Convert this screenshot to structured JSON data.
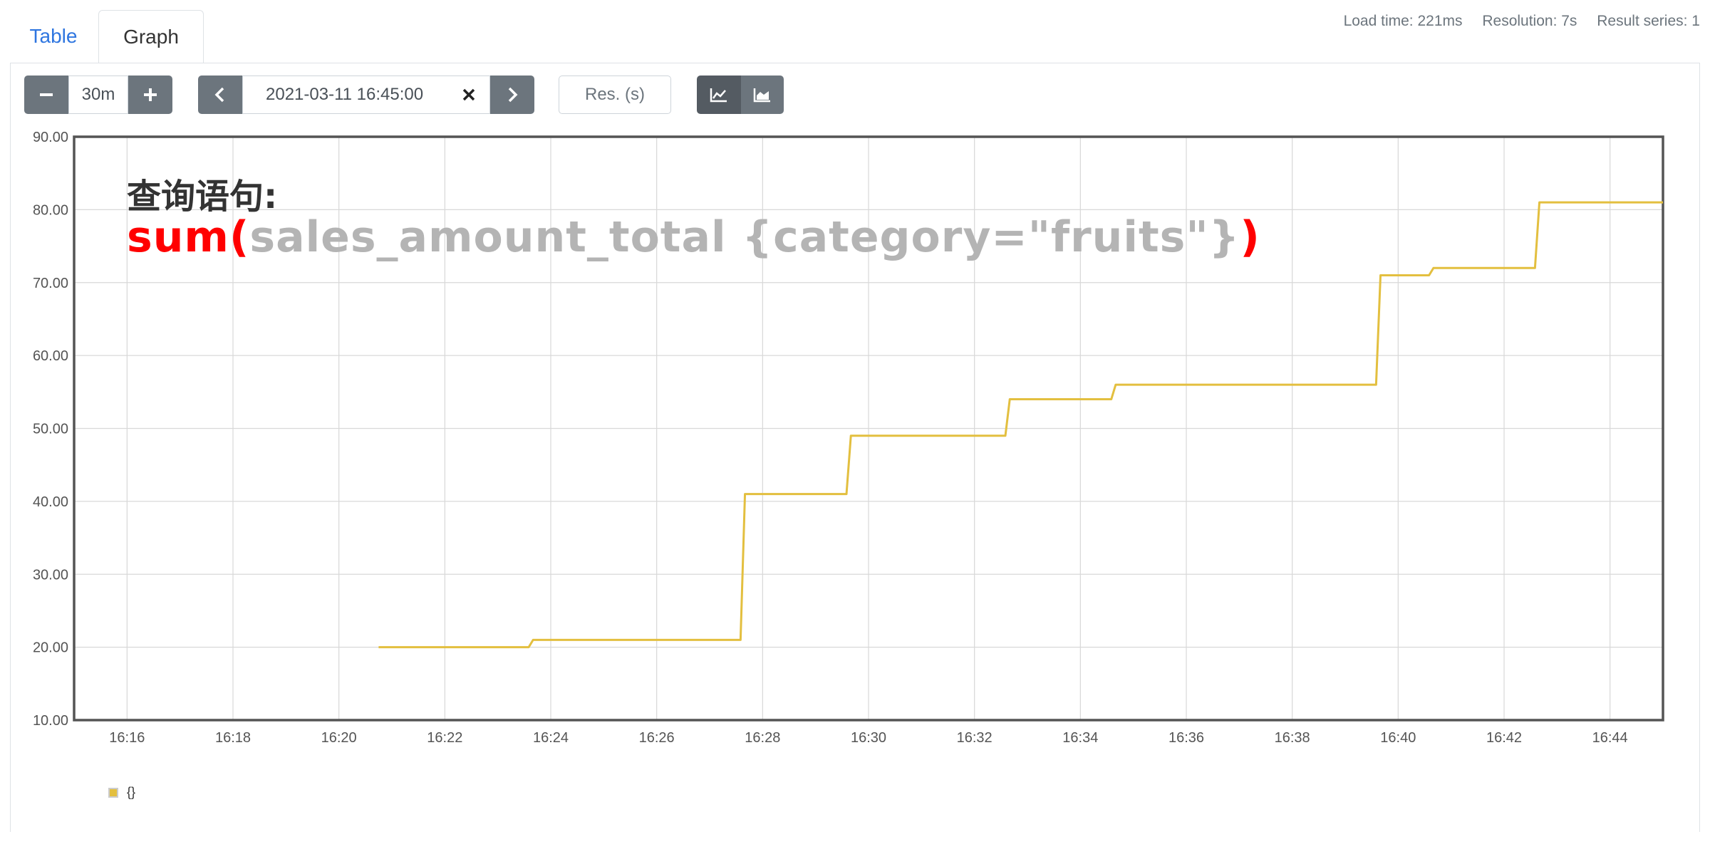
{
  "tabs": [
    {
      "label": "Table"
    },
    {
      "label": "Graph"
    }
  ],
  "stats": {
    "load_time": "Load time: 221ms",
    "resolution": "Resolution: 7s",
    "result_series": "Result series: 1"
  },
  "controls": {
    "range_value": "30m",
    "end_time": "2021-03-11 16:45:00",
    "resolution_placeholder": "Res. (s)"
  },
  "overlay": {
    "title": "查询语句:",
    "query_fn_open": "sum(",
    "query_metric": "sales_amount_total {category=\"fruits\"}",
    "query_fn_close": ")"
  },
  "legend": [
    {
      "label": "{}",
      "color": "#e3bf3f"
    }
  ],
  "colors": {
    "series": "#e3bf3f",
    "button": "#6c757d",
    "tab_active_link": "#2f76e0"
  },
  "chart_data": {
    "type": "line",
    "x_ticks": [
      "16:16",
      "16:18",
      "16:20",
      "16:22",
      "16:24",
      "16:26",
      "16:28",
      "16:30",
      "16:32",
      "16:34",
      "16:36",
      "16:38",
      "16:40",
      "16:42",
      "16:44"
    ],
    "y_ticks": [
      "10.00",
      "20.00",
      "30.00",
      "40.00",
      "50.00",
      "60.00",
      "70.00",
      "80.00",
      "90.00"
    ],
    "ylim": [
      10,
      90
    ],
    "xlim": [
      "16:15",
      "16:45"
    ],
    "grid": true,
    "legend_position": "bottom-left",
    "series": [
      {
        "name": "{}",
        "points": [
          [
            "16:20:45",
            20
          ],
          [
            "16:23:35",
            20
          ],
          [
            "16:23:40",
            21
          ],
          [
            "16:27:35",
            21
          ],
          [
            "16:27:40",
            41
          ],
          [
            "16:29:35",
            41
          ],
          [
            "16:29:40",
            49
          ],
          [
            "16:32:35",
            49
          ],
          [
            "16:32:40",
            54
          ],
          [
            "16:34:35",
            54
          ],
          [
            "16:34:40",
            56
          ],
          [
            "16:39:35",
            56
          ],
          [
            "16:39:40",
            71
          ],
          [
            "16:40:35",
            71
          ],
          [
            "16:40:40",
            72
          ],
          [
            "16:42:35",
            72
          ],
          [
            "16:42:40",
            81
          ],
          [
            "16:45:00",
            81
          ]
        ]
      }
    ]
  }
}
